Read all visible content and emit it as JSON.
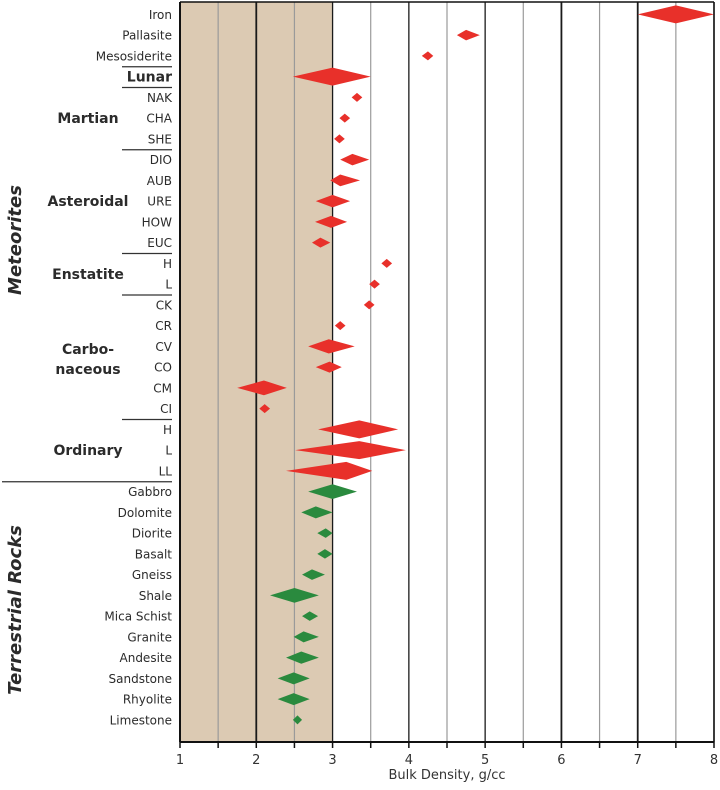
{
  "chart_data": {
    "type": "diamond-range",
    "title": "",
    "xlabel": "Bulk Density, g/cc",
    "ylabel": "",
    "xlim": [
      1,
      8
    ],
    "x_ticks": [
      "1",
      "2",
      "3",
      "4",
      "5",
      "6",
      "7",
      "8"
    ],
    "minor_x_ticks": [
      1.5,
      2.5,
      3.5,
      4.5,
      5.5,
      6.5,
      7.5
    ],
    "shaded_range": {
      "from": 1,
      "to": 3,
      "color": "#dccab3"
    },
    "colors": {
      "meteorite": "#e8302a",
      "terrestrial": "#2a8a3e"
    },
    "sections": [
      {
        "label": "Meteorites",
        "first_row": 0,
        "last_row": 22
      },
      {
        "label": "Terrestrial Rocks",
        "first_row": 23,
        "last_row": 34
      }
    ],
    "groups": [
      {
        "label": "Lunar",
        "rows": [
          3
        ],
        "inline": true
      },
      {
        "label": "Martian",
        "rows": [
          4,
          5,
          6
        ]
      },
      {
        "label": "Asteroidal",
        "rows": [
          7,
          8,
          9,
          10,
          11
        ]
      },
      {
        "label": "Enstatite",
        "rows": [
          12,
          13
        ]
      },
      {
        "label": "Carbo-\nnaceous",
        "label_lines": [
          "Carbo-",
          "naceous"
        ],
        "rows": [
          14,
          15,
          16,
          17,
          18,
          19
        ]
      },
      {
        "label": "Ordinary",
        "rows": [
          20,
          21,
          22
        ]
      }
    ],
    "rows": [
      {
        "label": "Iron",
        "category": "meteorite",
        "min": 7.0,
        "peak": 7.5,
        "max": 8.0
      },
      {
        "label": "Pallasite",
        "category": "meteorite",
        "min": 4.63,
        "peak": 4.75,
        "max": 4.93
      },
      {
        "label": "Mesosiderite",
        "category": "meteorite",
        "min": 4.17,
        "peak": 4.25,
        "max": 4.32
      },
      {
        "label": "",
        "category": "meteorite",
        "min": 2.48,
        "peak": 3.0,
        "max": 3.5
      },
      {
        "label": "NAK",
        "category": "meteorite",
        "min": 3.25,
        "peak": 3.32,
        "max": 3.39
      },
      {
        "label": "CHA",
        "category": "meteorite",
        "min": 3.09,
        "peak": 3.16,
        "max": 3.23
      },
      {
        "label": "SHE",
        "category": "meteorite",
        "min": 3.02,
        "peak": 3.09,
        "max": 3.16
      },
      {
        "label": "DIO",
        "category": "meteorite",
        "min": 3.1,
        "peak": 3.26,
        "max": 3.48
      },
      {
        "label": "AUB",
        "category": "meteorite",
        "min": 2.97,
        "peak": 3.1,
        "max": 3.36
      },
      {
        "label": "URE",
        "category": "meteorite",
        "min": 2.78,
        "peak": 3.0,
        "max": 3.23
      },
      {
        "label": "HOW",
        "category": "meteorite",
        "min": 2.77,
        "peak": 2.98,
        "max": 3.19
      },
      {
        "label": "EUC",
        "category": "meteorite",
        "min": 2.73,
        "peak": 2.84,
        "max": 2.97
      },
      {
        "label": "H",
        "category": "meteorite",
        "min": 3.64,
        "peak": 3.71,
        "max": 3.78
      },
      {
        "label": "L",
        "category": "meteorite",
        "min": 3.48,
        "peak": 3.55,
        "max": 3.62
      },
      {
        "label": "CK",
        "category": "meteorite",
        "min": 3.41,
        "peak": 3.48,
        "max": 3.55
      },
      {
        "label": "CR",
        "category": "meteorite",
        "min": 3.03,
        "peak": 3.1,
        "max": 3.17
      },
      {
        "label": "CV",
        "category": "meteorite",
        "min": 2.68,
        "peak": 2.95,
        "max": 3.29
      },
      {
        "label": "CO",
        "category": "meteorite",
        "min": 2.78,
        "peak": 2.96,
        "max": 3.12
      },
      {
        "label": "CM",
        "category": "meteorite",
        "min": 1.75,
        "peak": 2.1,
        "max": 2.4
      },
      {
        "label": "CI",
        "category": "meteorite",
        "min": 2.04,
        "peak": 2.11,
        "max": 2.18
      },
      {
        "label": "H",
        "category": "meteorite",
        "min": 2.81,
        "peak": 3.35,
        "max": 3.86
      },
      {
        "label": "L",
        "category": "meteorite",
        "min": 2.51,
        "peak": 3.35,
        "max": 3.96
      },
      {
        "label": "LL",
        "category": "meteorite",
        "min": 2.39,
        "peak": 3.18,
        "max": 3.52
      },
      {
        "label": "Gabbro",
        "category": "terrestrial",
        "min": 2.68,
        "peak": 3.0,
        "max": 3.32
      },
      {
        "label": "Dolomite",
        "category": "terrestrial",
        "min": 2.59,
        "peak": 2.78,
        "max": 3.0
      },
      {
        "label": "Diorite",
        "category": "terrestrial",
        "min": 2.8,
        "peak": 2.91,
        "max": 3.0
      },
      {
        "label": "Basalt",
        "category": "terrestrial",
        "min": 2.8,
        "peak": 2.9,
        "max": 3.0
      },
      {
        "label": "Gneiss",
        "category": "terrestrial",
        "min": 2.6,
        "peak": 2.73,
        "max": 2.9
      },
      {
        "label": "Shale",
        "category": "terrestrial",
        "min": 2.18,
        "peak": 2.5,
        "max": 2.82
      },
      {
        "label": "Mica Schist",
        "category": "terrestrial",
        "min": 2.6,
        "peak": 2.7,
        "max": 2.81
      },
      {
        "label": "Granite",
        "category": "terrestrial",
        "min": 2.49,
        "peak": 2.62,
        "max": 2.82
      },
      {
        "label": "Andesite",
        "category": "terrestrial",
        "min": 2.39,
        "peak": 2.59,
        "max": 2.82
      },
      {
        "label": "Sandstone",
        "category": "terrestrial",
        "min": 2.28,
        "peak": 2.49,
        "max": 2.7
      },
      {
        "label": "Rhyolite",
        "category": "terrestrial",
        "min": 2.28,
        "peak": 2.49,
        "max": 2.7
      },
      {
        "label": "Limestone",
        "category": "terrestrial",
        "min": 2.48,
        "peak": 2.54,
        "max": 2.6
      }
    ],
    "dividers_after_rows": [
      2,
      3,
      6,
      11,
      13,
      19
    ],
    "section_divider_after_row": 22,
    "grid": true,
    "legend": "none"
  }
}
